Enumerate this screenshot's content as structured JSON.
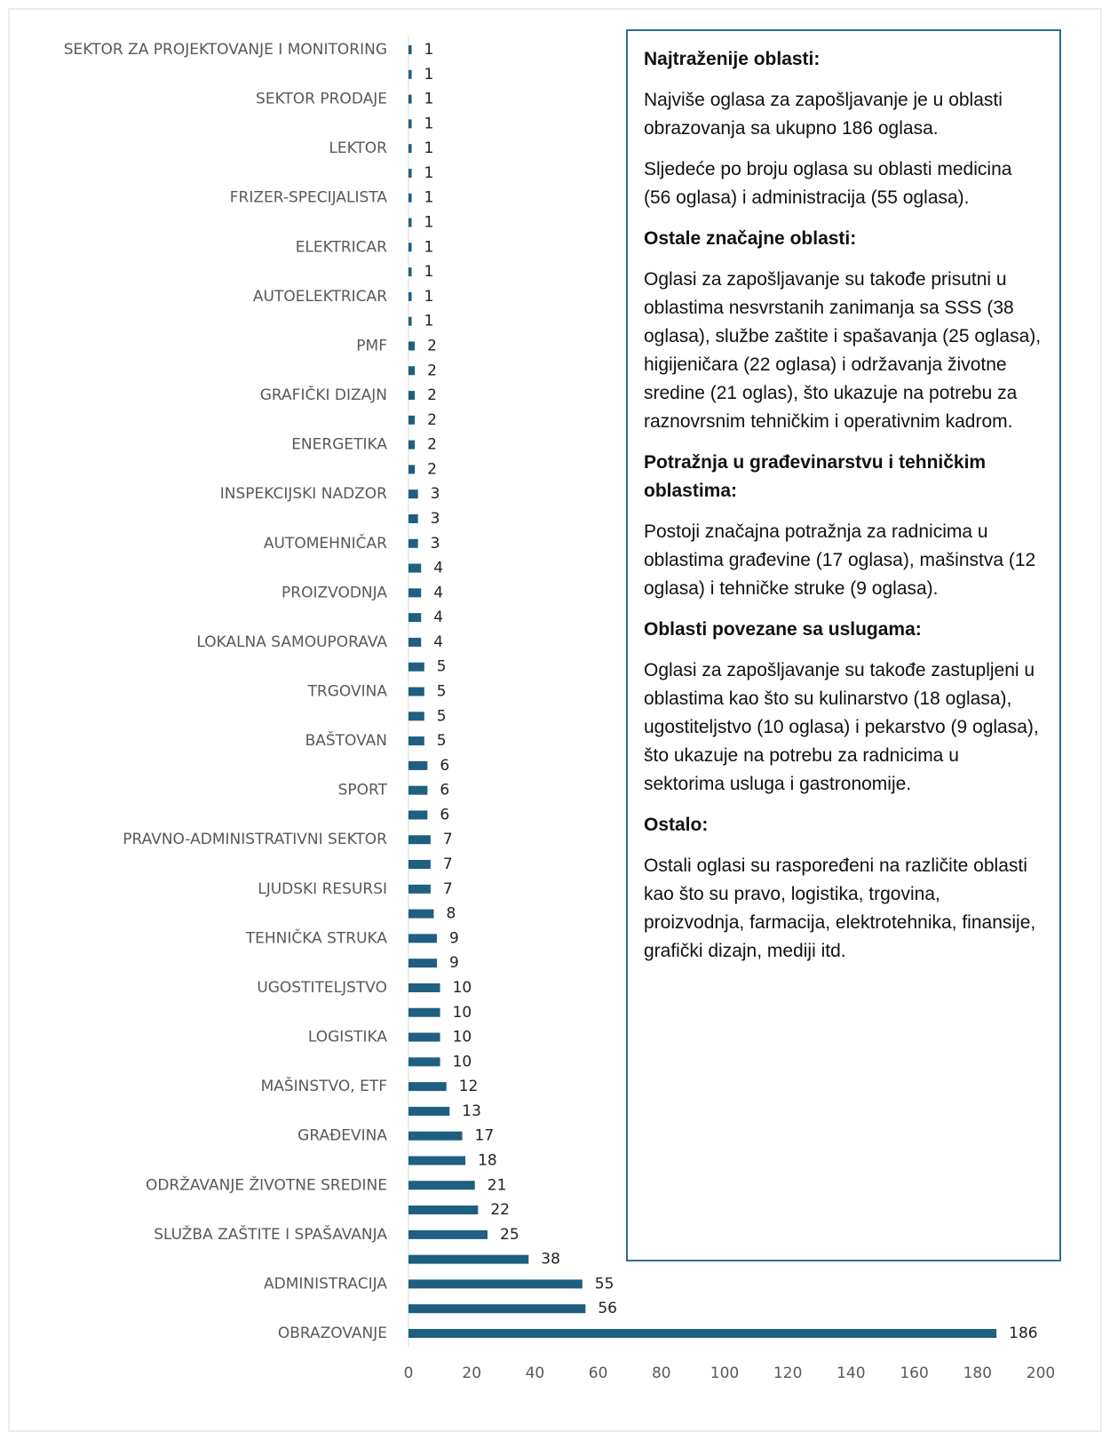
{
  "chart_data": {
    "type": "bar",
    "orientation": "horizontal",
    "color": "#1f5f80",
    "categories": [
      "SEKTOR ZA PROJEKTOVANJE I MONITORING",
      null,
      "SEKTOR PRODAJE",
      null,
      "LEKTOR",
      null,
      "FRIZER-SPECIJALISTA",
      null,
      "ELEKTRICAR",
      null,
      "AUTOELEKTRICAR",
      null,
      "PMF",
      null,
      "GRAFIČKI DIZAJN",
      null,
      "ENERGETIKA",
      null,
      "INSPEKCIJSKI NADZOR",
      null,
      "AUTOMEHNIČAR",
      null,
      "PROIZVODNJA",
      null,
      "LOKALNA SAMOUPORAVA",
      null,
      "TRGOVINA",
      null,
      "BAŠTOVAN",
      null,
      "SPORT",
      null,
      "PRAVNO-ADMINISTRATIVNI SEKTOR",
      null,
      "LJUDSKI RESURSI",
      null,
      "TEHNIČKA STRUKA",
      null,
      "UGOSTITELJSTVO",
      null,
      "LOGISTIKA",
      null,
      "MAŠINSTVO, ETF",
      null,
      "GRAĐEVINA",
      null,
      "ODRŽAVANJE ŽIVOTNE SREDINE",
      null,
      "SLUŽBA ZAŠTITE I SPAŠAVANJA",
      null,
      "ADMINISTRACIJA",
      null,
      "OBRAZOVANJE"
    ],
    "values": [
      1,
      1,
      1,
      1,
      1,
      1,
      1,
      1,
      1,
      1,
      1,
      1,
      2,
      2,
      2,
      2,
      2,
      2,
      3,
      3,
      3,
      4,
      4,
      4,
      4,
      5,
      5,
      5,
      5,
      6,
      6,
      6,
      7,
      7,
      7,
      8,
      9,
      9,
      10,
      10,
      10,
      10,
      12,
      13,
      17,
      18,
      21,
      22,
      25,
      38,
      55,
      56,
      186
    ],
    "xlim": [
      0,
      200
    ],
    "xticks": [
      0,
      20,
      40,
      60,
      80,
      100,
      120,
      140,
      160,
      180,
      200
    ]
  },
  "text_box": {
    "sections": [
      {
        "heading": "Najtraženije oblasti:",
        "paragraphs": [
          "Najviše oglasa za zapošljavanje je u oblasti obrazovanja sa ukupno 186 oglasa.",
          "Sljedeće po broju oglasa su oblasti medicina (56 oglasa) i administracija (55 oglasa)."
        ]
      },
      {
        "heading": "Ostale značajne oblasti:",
        "paragraphs": [
          "Oglasi za zapošljavanje su takođe prisutni u oblastima nesvrstanih zanimanja sa SSS (38 oglasa), službe zaštite i spašavanja (25 oglasa), higijeničara (22 oglasa) i održavanja životne sredine (21 oglas), što ukazuje na potrebu za raznovrsnim tehničkim i operativnim kadrom."
        ]
      },
      {
        "heading": "Potražnja u građevinarstvu i tehničkim oblastima:",
        "paragraphs": [
          "Postoji značajna potražnja za radnicima u oblastima građevine (17 oglasa), mašinstva (12 oglasa) i tehničke struke (9 oglasa)."
        ]
      },
      {
        "heading": "Oblasti povezane sa uslugama:",
        "paragraphs": [
          "Oglasi za zapošljavanje su takođe zastupljeni u oblastima kao što su kulinarstvo (18 oglasa), ugostiteljstvo (10 oglasa) i pekarstvo (9 oglasa), što ukazuje na potrebu za radnicima u sektorima usluga i gastronomije."
        ]
      },
      {
        "heading": "Ostalo:",
        "paragraphs": [
          "Ostali oglasi su raspoređeni na različite oblasti kao što su pravo, logistika, trgovina, proizvodnja, farmacija, elektrotehnika, finansije, grafički dizajn, mediji itd."
        ]
      }
    ]
  }
}
